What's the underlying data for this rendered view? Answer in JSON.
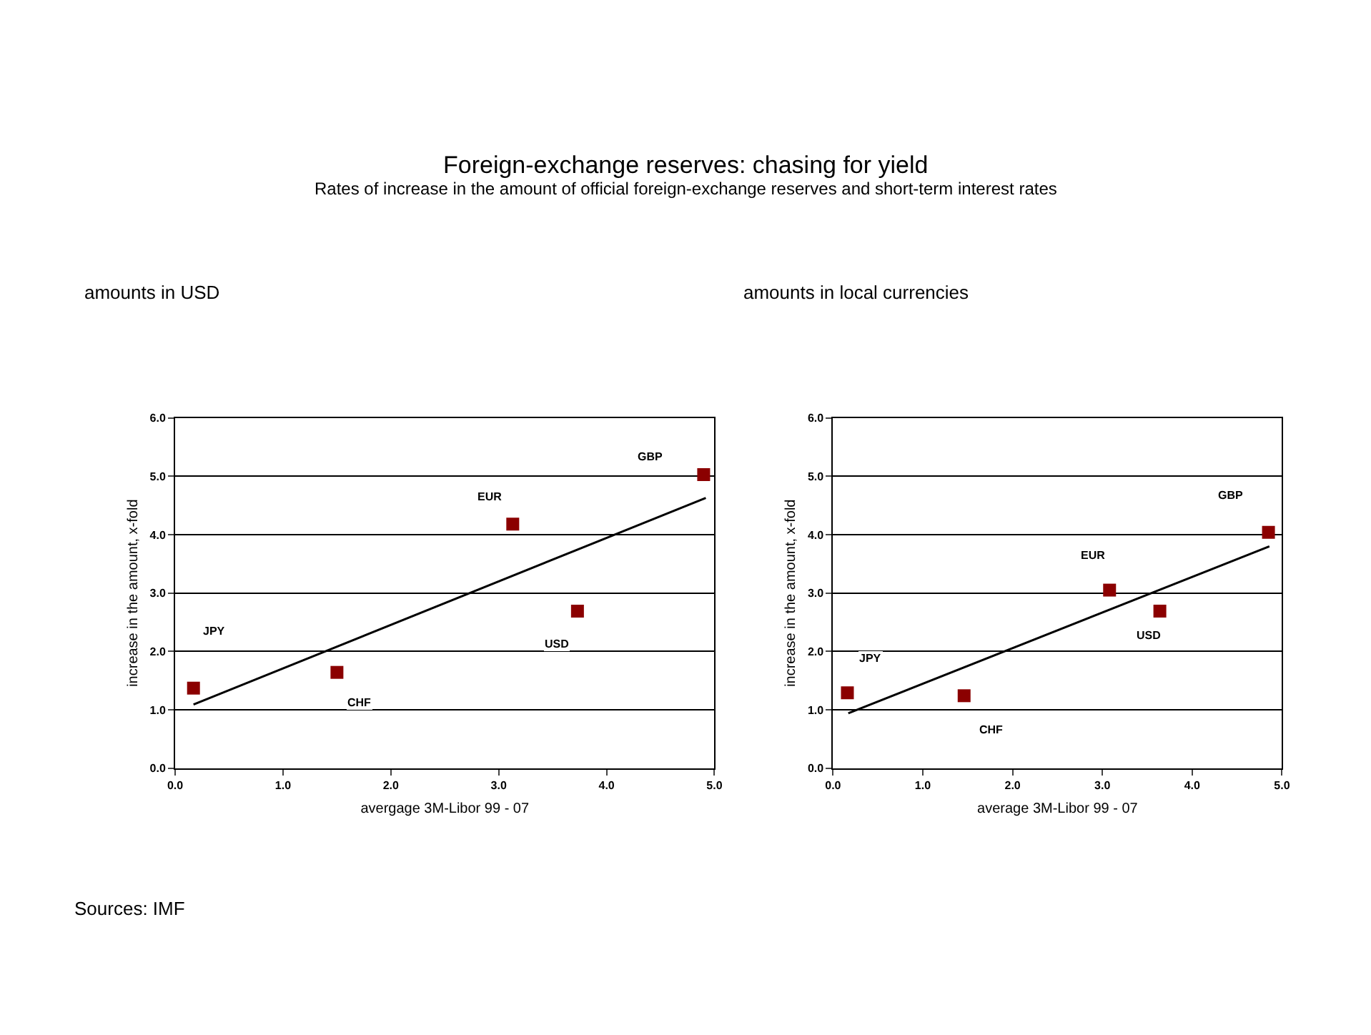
{
  "chart_data": [
    {
      "type": "other",
      "title": "Foreign-exchange reserves: chasing for yield",
      "subtitle": "Rates of increase in the amount of official foreign-exchange reserves and short-term interest rates",
      "annotations": [
        "Sources: IMF"
      ]
    },
    {
      "type": "scatter",
      "title": "amounts in USD",
      "xlabel": "avergage 3M-Libor 99 - 07",
      "ylabel": "increase in the amount, x-fold",
      "grid": "y",
      "xlim": [
        0,
        5
      ],
      "ylim": [
        0,
        6
      ],
      "xticks": [
        {
          "value": 0,
          "label": "0.0"
        },
        {
          "value": 1,
          "label": "1.0"
        },
        {
          "value": 2,
          "label": "2.0"
        },
        {
          "value": 3,
          "label": "3.0"
        },
        {
          "value": 4,
          "label": "4.0"
        },
        {
          "value": 5,
          "label": "5.0"
        }
      ],
      "yticks": [
        {
          "value": 0,
          "label": "0.0"
        },
        {
          "value": 1,
          "label": "1.0"
        },
        {
          "value": 2,
          "label": "2.0"
        },
        {
          "value": 3,
          "label": "3.0"
        },
        {
          "value": 4,
          "label": "4.0"
        },
        {
          "value": 5,
          "label": "5.0"
        },
        {
          "value": 6,
          "label": "6.0"
        }
      ],
      "series": [
        {
          "type": "scatter",
          "marker": "square",
          "color": "#8b0000",
          "x": [
            0.17,
            1.5,
            3.13,
            3.73,
            4.9
          ],
          "values": [
            1.37,
            1.64,
            4.18,
            2.69,
            5.03
          ]
        },
        {
          "type": "line",
          "marker": "none",
          "color": "#000000",
          "x": [
            0.17,
            4.92
          ],
          "values": [
            1.09,
            4.63
          ]
        }
      ],
      "annotations": [
        "JPY",
        "CHF",
        "EUR",
        "USD",
        "GBP"
      ]
    },
    {
      "type": "scatter",
      "title": "amounts in local currencies",
      "xlabel": "average 3M-Libor 99 - 07",
      "ylabel": "increase in the amount, x-fold",
      "grid": "y",
      "xlim": [
        0,
        5
      ],
      "ylim": [
        0,
        6
      ],
      "xticks": [
        {
          "value": 0,
          "label": "0.0"
        },
        {
          "value": 1,
          "label": "1.0"
        },
        {
          "value": 2,
          "label": "2.0"
        },
        {
          "value": 3,
          "label": "3.0"
        },
        {
          "value": 4,
          "label": "4.0"
        },
        {
          "value": 5,
          "label": "5.0"
        }
      ],
      "yticks": [
        {
          "value": 0,
          "label": "0.0"
        },
        {
          "value": 1,
          "label": "1.0"
        },
        {
          "value": 2,
          "label": "2.0"
        },
        {
          "value": 3,
          "label": "3.0"
        },
        {
          "value": 4,
          "label": "4.0"
        },
        {
          "value": 5,
          "label": "5.0"
        },
        {
          "value": 6,
          "label": "6.0"
        }
      ],
      "series": [
        {
          "type": "scatter",
          "marker": "square",
          "color": "#8b0000",
          "x": [
            0.16,
            1.46,
            3.08,
            3.64,
            4.85
          ],
          "values": [
            1.29,
            1.24,
            3.05,
            2.69,
            4.04
          ]
        },
        {
          "type": "line",
          "marker": "none",
          "color": "#000000",
          "x": [
            0.17,
            4.86
          ],
          "values": [
            0.94,
            3.8
          ]
        }
      ],
      "annotations": [
        "JPY",
        "CHF",
        "EUR",
        "USD",
        "GBP"
      ]
    }
  ]
}
